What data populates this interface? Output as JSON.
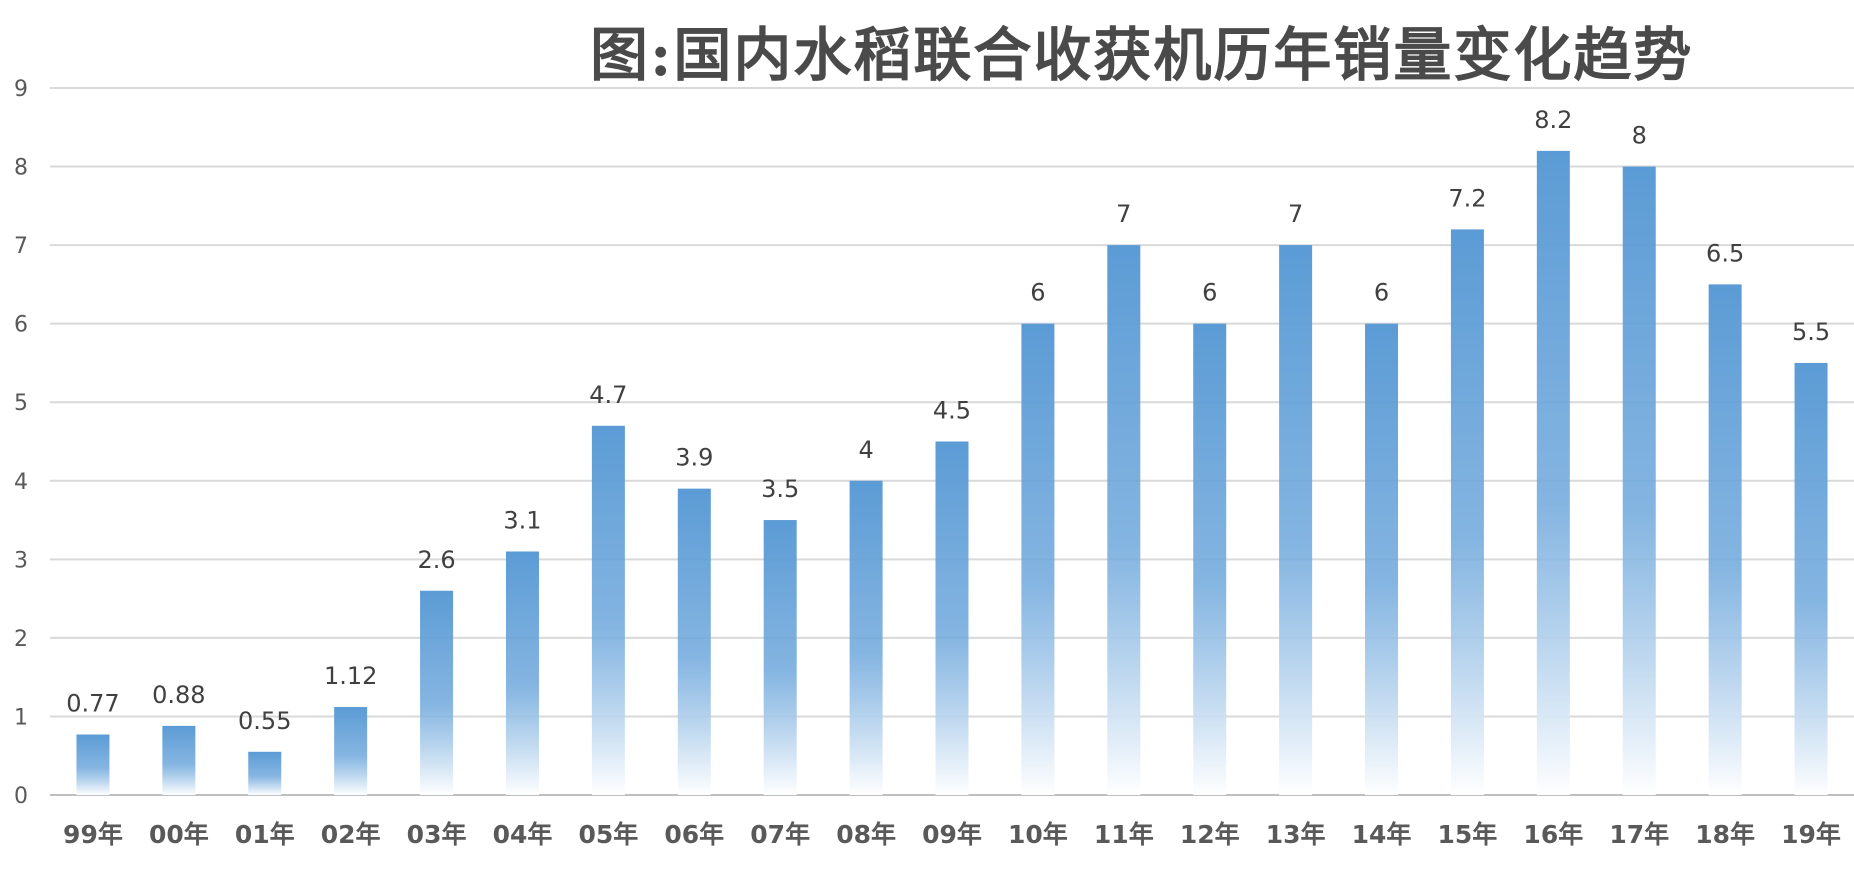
{
  "chart_data": {
    "type": "bar",
    "title": "图:国内水稻联合收获机历年销量变化趋势",
    "xlabel": "",
    "ylabel": "",
    "categories": [
      "99年",
      "00年",
      "01年",
      "02年",
      "03年",
      "04年",
      "05年",
      "06年",
      "07年",
      "08年",
      "09年",
      "10年",
      "11年",
      "12年",
      "13年",
      "14年",
      "15年",
      "16年",
      "17年",
      "18年",
      "19年"
    ],
    "values": [
      0.77,
      0.88,
      0.55,
      1.12,
      2.6,
      3.1,
      4.7,
      3.9,
      3.5,
      4,
      4.5,
      6,
      7,
      6,
      7,
      6,
      7.2,
      8.2,
      8,
      6.5,
      5.5
    ],
    "data_labels": [
      "0.77",
      "0.88",
      "0.55",
      "1.12",
      "2.6",
      "3.1",
      "4.7",
      "3.9",
      "3.5",
      "4",
      "4.5",
      "6",
      "7",
      "6",
      "7",
      "6",
      "7.2",
      "8.2",
      "8",
      "6.5",
      "5.5"
    ],
    "yticks": [
      "0",
      "1",
      "2",
      "3",
      "4",
      "5",
      "6",
      "7",
      "8",
      "9"
    ],
    "ylim": [
      0,
      9
    ],
    "grid": true,
    "legend": "none",
    "colors": {
      "bar": "#5b9bd5",
      "grid": "#d9d9d9",
      "axis": "#bfbfbf"
    }
  }
}
